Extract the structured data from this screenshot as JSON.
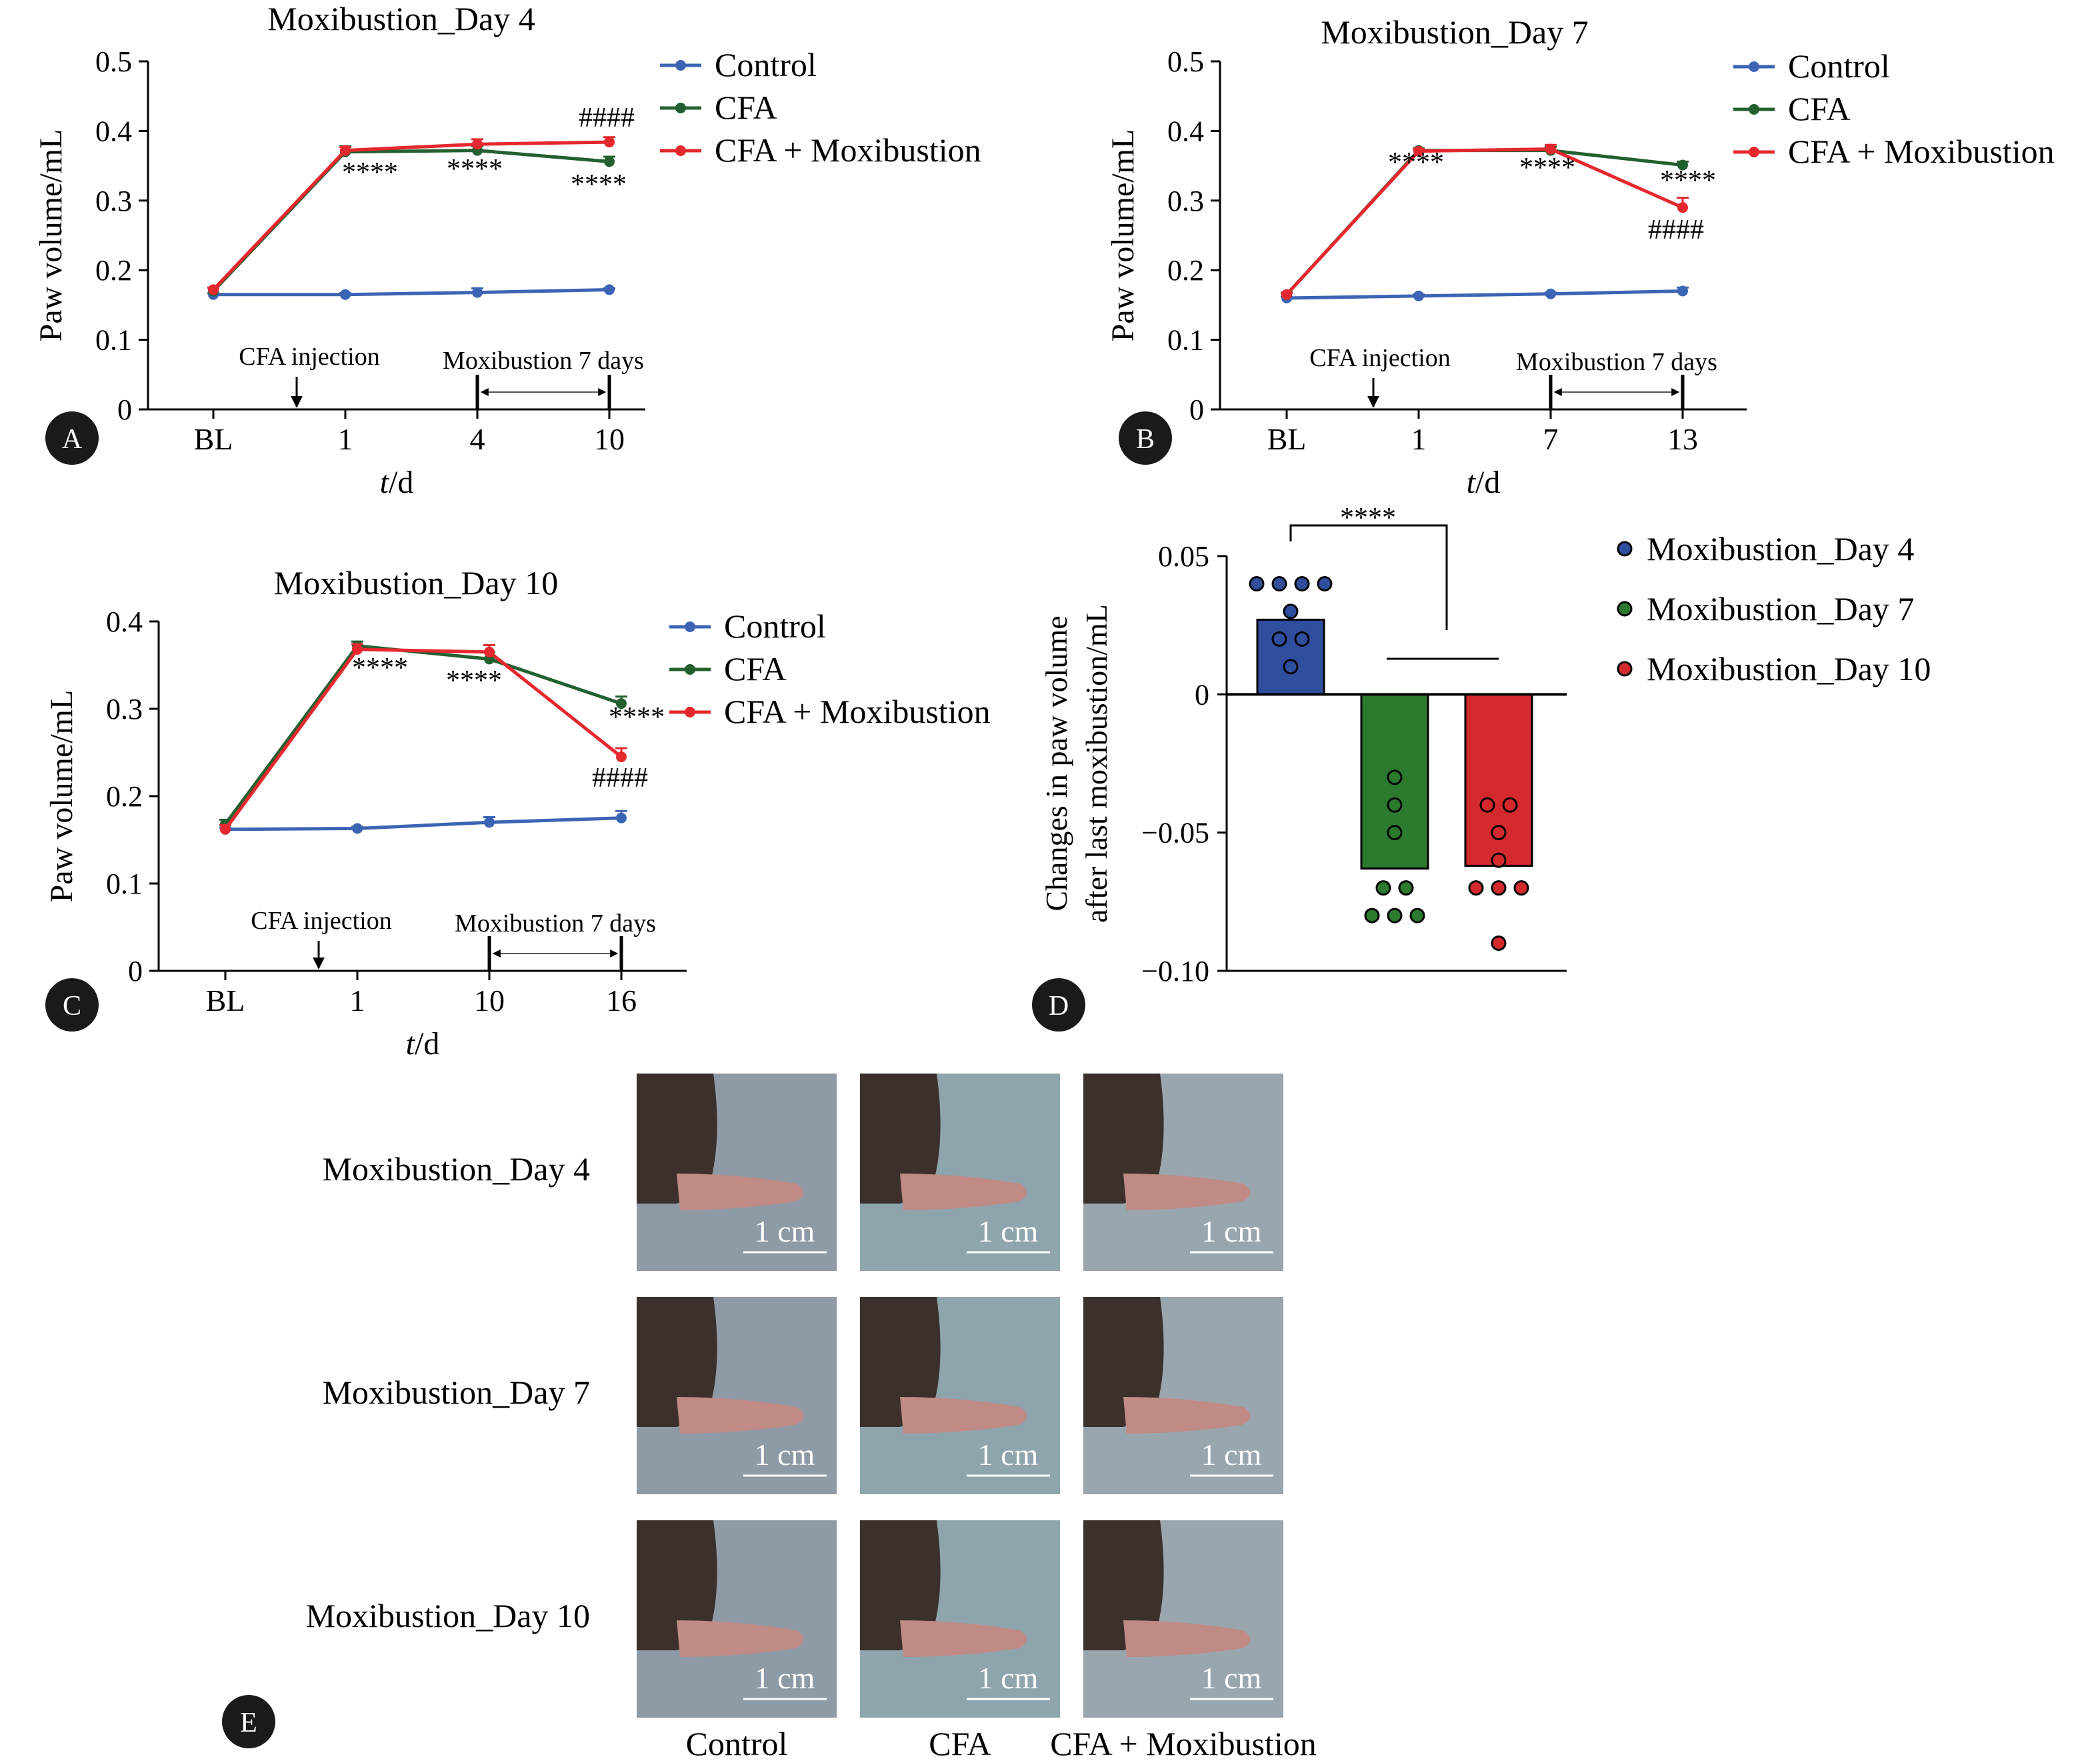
{
  "colors": {
    "control": "#3c64b4",
    "cfa": "#23602f",
    "cfa_moxibustion": "#e5282e",
    "day4": "#2f4e9e",
    "day7": "#2b7a2e",
    "day10": "#d42a2e",
    "axis": "#000000"
  },
  "panels": {
    "A": "A",
    "B": "B",
    "C": "C",
    "D": "D",
    "E": "E"
  },
  "chart_data": [
    {
      "id": "A",
      "type": "line",
      "title": "Moxibustion_Day 4",
      "ylabel": "Paw volume/mL",
      "xlabel_italic": "t",
      "xlabel_rest": "/d",
      "categories": [
        "BL",
        "1",
        "4",
        "10"
      ],
      "ylim": [
        0,
        0.5
      ],
      "yticks": [
        "0",
        "0.1",
        "0.2",
        "0.3",
        "0.4",
        "0.5"
      ],
      "series": [
        {
          "name": "Control",
          "values": [
            0.165,
            0.165,
            0.168,
            0.172
          ],
          "errors": [
            0.002,
            0.002,
            0.006,
            0.002
          ]
        },
        {
          "name": "CFA",
          "values": [
            0.17,
            0.37,
            0.372,
            0.356
          ],
          "errors": [
            0.005,
            0.008,
            0.006,
            0.007
          ]
        },
        {
          "name": "CFA + Moxibustion",
          "values": [
            0.172,
            0.372,
            0.381,
            0.384
          ],
          "errors": [
            0.003,
            0.005,
            0.007,
            0.007
          ]
        }
      ],
      "annotations": {
        "stars": [
          "****",
          "****",
          "****"
        ],
        "hash": "####",
        "injection": "CFA injection",
        "treatment": "Moxibustion 7 days"
      },
      "legend": "top-right"
    },
    {
      "id": "B",
      "type": "line",
      "title": "Moxibustion_Day 7",
      "ylabel": "Paw volume/mL",
      "xlabel_italic": "t",
      "xlabel_rest": "/d",
      "categories": [
        "BL",
        "1",
        "7",
        "13"
      ],
      "ylim": [
        0,
        0.5
      ],
      "yticks": [
        "0",
        "0.1",
        "0.2",
        "0.3",
        "0.4",
        "0.5"
      ],
      "series": [
        {
          "name": "Control",
          "values": [
            0.16,
            0.163,
            0.166,
            0.17
          ],
          "errors": [
            0.002,
            0.002,
            0.002,
            0.005
          ]
        },
        {
          "name": "CFA",
          "values": [
            0.165,
            0.372,
            0.372,
            0.351
          ],
          "errors": [
            0.003,
            0.003,
            0.005,
            0.005
          ]
        },
        {
          "name": "CFA + Moxibustion",
          "values": [
            0.165,
            0.371,
            0.374,
            0.29
          ],
          "errors": [
            0.002,
            0.003,
            0.006,
            0.014
          ]
        }
      ],
      "annotations": {
        "stars": [
          "****",
          "****",
          "****"
        ],
        "hash": "####",
        "injection": "CFA injection",
        "treatment": "Moxibustion 7 days"
      },
      "legend": "top-right"
    },
    {
      "id": "C",
      "type": "line",
      "title": "Moxibustion_Day 10",
      "ylabel": "Paw volume/mL",
      "xlabel_italic": "t",
      "xlabel_rest": "/d",
      "categories": [
        "BL",
        "1",
        "10",
        "16"
      ],
      "ylim": [
        0,
        0.4
      ],
      "yticks": [
        "0",
        "0.1",
        "0.2",
        "0.3",
        "0.4"
      ],
      "series": [
        {
          "name": "Control",
          "values": [
            0.162,
            0.163,
            0.17,
            0.175
          ],
          "errors": [
            0.002,
            0.002,
            0.006,
            0.008
          ]
        },
        {
          "name": "CFA",
          "values": [
            0.168,
            0.372,
            0.357,
            0.306
          ],
          "errors": [
            0.005,
            0.005,
            0.008,
            0.008
          ]
        },
        {
          "name": "CFA + Moxibustion",
          "values": [
            0.162,
            0.368,
            0.365,
            0.245
          ],
          "errors": [
            0.005,
            0.006,
            0.008,
            0.01
          ]
        }
      ],
      "annotations": {
        "stars": [
          "****",
          "****",
          "****"
        ],
        "hash": "####",
        "injection": "CFA injection",
        "treatment": "Moxibustion 7 days"
      },
      "legend": "top-right"
    },
    {
      "id": "D",
      "type": "bar",
      "ylabel_line1": "Changes in paw volume",
      "ylabel_line2": "after last moxibustion/mL",
      "categories": [
        "Moxibustion_Day 4",
        "Moxibustion_Day 7",
        "Moxibustion_Day 10"
      ],
      "values": [
        0.027,
        -0.063,
        -0.062
      ],
      "points": [
        [
          0.04,
          0.04,
          0.04,
          0.04,
          0.03,
          0.02,
          0.02,
          0.01
        ],
        [
          -0.03,
          -0.04,
          -0.05,
          -0.07,
          -0.07,
          -0.08,
          -0.08,
          -0.08
        ],
        [
          -0.04,
          -0.04,
          -0.05,
          -0.06,
          -0.07,
          -0.07,
          -0.07,
          -0.09
        ]
      ],
      "ylim": [
        -0.1,
        0.05
      ],
      "yticks": [
        "0.05",
        "0",
        "−0.05",
        "−0.10"
      ],
      "significance": "****",
      "legend": "right"
    }
  ],
  "photo_grid": {
    "rows": [
      "Moxibustion_Day 4",
      "Moxibustion_Day 7",
      "Moxibustion_Day 10"
    ],
    "columns": [
      "Control",
      "CFA",
      "CFA + Moxibustion"
    ],
    "scale_label": "1 cm"
  }
}
